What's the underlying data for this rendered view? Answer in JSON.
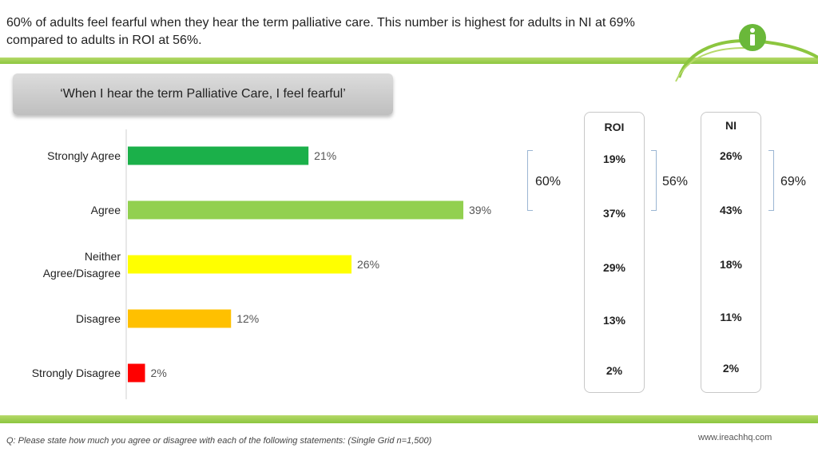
{
  "headline": "60% of adults feel fearful when they hear the term palliative care. This number is highest for adults in NI at 69% compared to adults in ROI at 56%.",
  "statement": "‘When I hear the term Palliative Care, I feel fearful’",
  "chart_data": {
    "type": "bar",
    "orientation": "horizontal",
    "title": "",
    "xlabel": "",
    "ylabel": "",
    "xlim": [
      0,
      50
    ],
    "grid": false,
    "categories": [
      "Strongly Agree",
      "Agree",
      "Neither\nAgree/Disagree",
      "Disagree",
      "Strongly Disagree"
    ],
    "values": [
      21,
      39,
      26,
      12,
      2
    ],
    "value_labels": [
      "21%",
      "39%",
      "26%",
      "12%",
      "2%"
    ],
    "colors": [
      "#1bb04a",
      "#92d050",
      "#ffff00",
      "#ffc000",
      "#ff0000"
    ],
    "group_total": "60%"
  },
  "regions": {
    "roi": {
      "label": "ROI",
      "values": [
        "19%",
        "37%",
        "29%",
        "13%",
        "2%"
      ],
      "agree_total": "56%"
    },
    "ni": {
      "label": "NI",
      "values": [
        "26%",
        "43%",
        "18%",
        "11%",
        "2%"
      ],
      "agree_total": "69%"
    }
  },
  "colors": {
    "accent_green": "#8cc63f",
    "logo_green": "#6ab83a",
    "bracket_blue": "#9bb6d3"
  },
  "logo_icon": "info-i-icon",
  "footnote": "Q: Please state how much you agree or disagree with each of the following statements: (Single Grid n=1,500)",
  "website": "www.ireachhq.com"
}
